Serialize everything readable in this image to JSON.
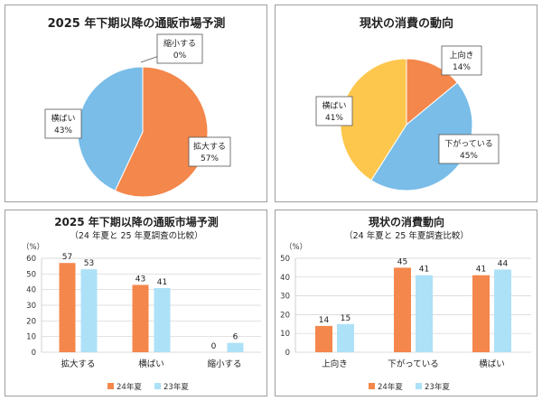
{
  "colors": {
    "orange": "#f4874b",
    "blue": "#79bde8",
    "yellow": "#fdc74e",
    "lightblue": "#ade1f7"
  },
  "chart_data": [
    {
      "type": "pie",
      "title": "2025 年下期以降の通販市場予測",
      "slices": [
        {
          "label": "拡大する",
          "value": 57,
          "text": "57%",
          "color": "#f4874b"
        },
        {
          "label": "横ばい",
          "value": 43,
          "text": "43%",
          "color": "#79bde8"
        },
        {
          "label": "縮小する",
          "value": 0,
          "text": "0%",
          "color": "#fdc74e"
        }
      ]
    },
    {
      "type": "pie",
      "title": "現状の消費の動向",
      "slices": [
        {
          "label": "上向き",
          "value": 14,
          "text": "14%",
          "color": "#f4874b"
        },
        {
          "label": "下がっている",
          "value": 45,
          "text": "45%",
          "color": "#79bde8"
        },
        {
          "label": "横ばい",
          "value": 41,
          "text": "41%",
          "color": "#fdc74e"
        }
      ]
    },
    {
      "type": "bar",
      "title": "2025 年下期以降の通販市場予測",
      "subtitle": "（24 年夏と 25 年夏調査の比較）",
      "ylabel": "（%）",
      "ylim": [
        0,
        60
      ],
      "yticks": [
        0,
        10,
        20,
        30,
        40,
        50,
        60
      ],
      "categories": [
        "拡大する",
        "横ばい",
        "縮小する"
      ],
      "series": [
        {
          "name": "24年夏",
          "values": [
            57,
            43,
            0
          ],
          "color": "#f4874b"
        },
        {
          "name": "23年夏",
          "values": [
            53,
            41,
            6
          ],
          "color": "#ade1f7"
        }
      ],
      "legend": "bottom"
    },
    {
      "type": "bar",
      "title": "現状の消費動向",
      "subtitle": "（24 年夏と 25 年夏調査比較）",
      "ylabel": "（%）",
      "ylim": [
        0,
        50
      ],
      "yticks": [
        0,
        10,
        20,
        30,
        40,
        50
      ],
      "categories": [
        "上向き",
        "下がっている",
        "横ばい"
      ],
      "series": [
        {
          "name": "24年夏",
          "values": [
            14,
            45,
            41
          ],
          "color": "#f4874b"
        },
        {
          "name": "23年夏",
          "values": [
            15,
            41,
            44
          ],
          "color": "#ade1f7"
        }
      ],
      "legend": "bottom"
    }
  ]
}
